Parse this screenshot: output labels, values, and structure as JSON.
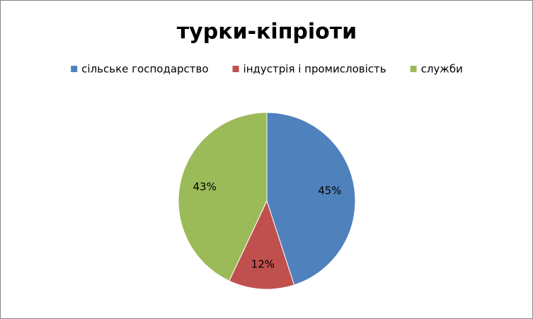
{
  "chart_data": {
    "type": "pie",
    "title": "турки-кіпріоти",
    "categories": [
      "сільське господарство",
      "індустрія і промисловість",
      "служби"
    ],
    "values": [
      45,
      12,
      43
    ],
    "value_labels": [
      "45%",
      "12%",
      "43%"
    ],
    "colors": [
      "#4f81bd",
      "#c0504d",
      "#9bbb59"
    ],
    "legend": "top"
  }
}
